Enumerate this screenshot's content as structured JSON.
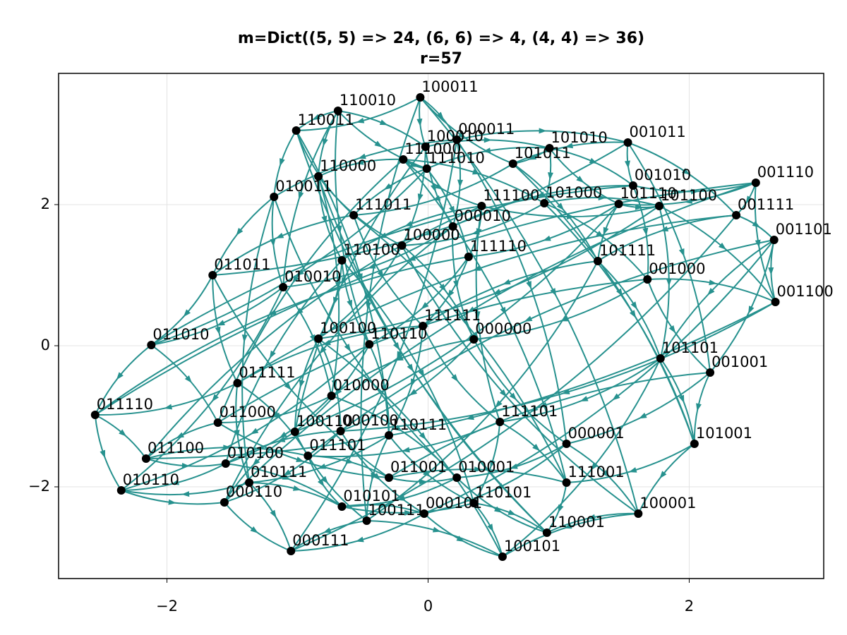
{
  "chart_data": {
    "type": "network",
    "title": "m=Dict((5, 5) => 24, (6, 6) => 4, (4, 4) => 36)",
    "subtitle": "r=57",
    "labels": [
      "100011",
      "110010",
      "110011",
      "100010",
      "000011",
      "101010",
      "001011",
      "111000",
      "111010",
      "101011",
      "110000",
      "001010",
      "001110",
      "010011",
      "111100",
      "101000",
      "101110",
      "101100",
      "001111",
      "111011",
      "000010",
      "100000",
      "001101",
      "110100",
      "111110",
      "101111",
      "011011",
      "001000",
      "010010",
      "001100",
      "111111",
      "100100",
      "110110",
      "000000",
      "011010",
      "101101",
      "001001",
      "011111",
      "010000",
      "011110",
      "011000",
      "111101",
      "100110",
      "000100",
      "110111",
      "101001",
      "000001",
      "011100",
      "010100",
      "011101",
      "010111",
      "011001",
      "010001",
      "111001",
      "010110",
      "000110",
      "010101",
      "100111",
      "000101",
      "110101",
      "100001",
      "110001",
      "000111",
      "100101"
    ],
    "x": [
      -0.06,
      -0.69,
      -1.01,
      -0.02,
      0.22,
      0.93,
      1.53,
      -0.19,
      -0.01,
      0.65,
      -0.84,
      1.57,
      2.51,
      -1.18,
      0.41,
      0.89,
      1.46,
      1.77,
      2.36,
      -0.57,
      0.19,
      -0.2,
      2.65,
      -0.66,
      0.31,
      1.3,
      -1.65,
      1.68,
      -1.11,
      2.66,
      -0.04,
      -0.84,
      -0.45,
      0.35,
      -2.12,
      1.78,
      2.16,
      -1.46,
      -0.74,
      -2.55,
      -1.61,
      0.55,
      -1.02,
      -0.67,
      -0.3,
      2.04,
      1.06,
      -2.16,
      -1.55,
      -0.92,
      -1.37,
      -0.3,
      0.22,
      1.06,
      -2.35,
      -1.56,
      -0.66,
      -0.47,
      -0.03,
      0.35,
      1.61,
      0.91,
      -1.05,
      0.57
    ],
    "y": [
      3.52,
      3.33,
      3.05,
      2.82,
      2.92,
      2.8,
      2.88,
      2.64,
      2.51,
      2.58,
      2.4,
      2.27,
      2.31,
      2.11,
      1.98,
      2.02,
      2.01,
      1.98,
      1.85,
      1.85,
      1.69,
      1.42,
      1.5,
      1.21,
      1.26,
      1.2,
      1.0,
      0.94,
      0.83,
      0.62,
      0.28,
      0.1,
      0.02,
      0.09,
      0.01,
      -0.18,
      -0.38,
      -0.53,
      -0.71,
      -0.98,
      -1.09,
      -1.08,
      -1.22,
      -1.21,
      -1.27,
      -1.39,
      -1.39,
      -1.6,
      -1.67,
      -1.56,
      -1.94,
      -1.87,
      -1.87,
      -1.94,
      -2.05,
      -2.22,
      -2.28,
      -2.48,
      -2.38,
      -2.23,
      -2.38,
      -2.65,
      -2.91,
      -2.99
    ],
    "xlim": [
      -2.83,
      3.03
    ],
    "ylim": [
      -3.3,
      3.86
    ],
    "xticks": [
      {
        "value": -2,
        "label": "−2"
      },
      0,
      2
    ],
    "yticks": [
      {
        "value": -2,
        "label": "−2"
      },
      0,
      2
    ],
    "grid": true,
    "edge_color": "#26918e",
    "node_color": "#000000"
  }
}
